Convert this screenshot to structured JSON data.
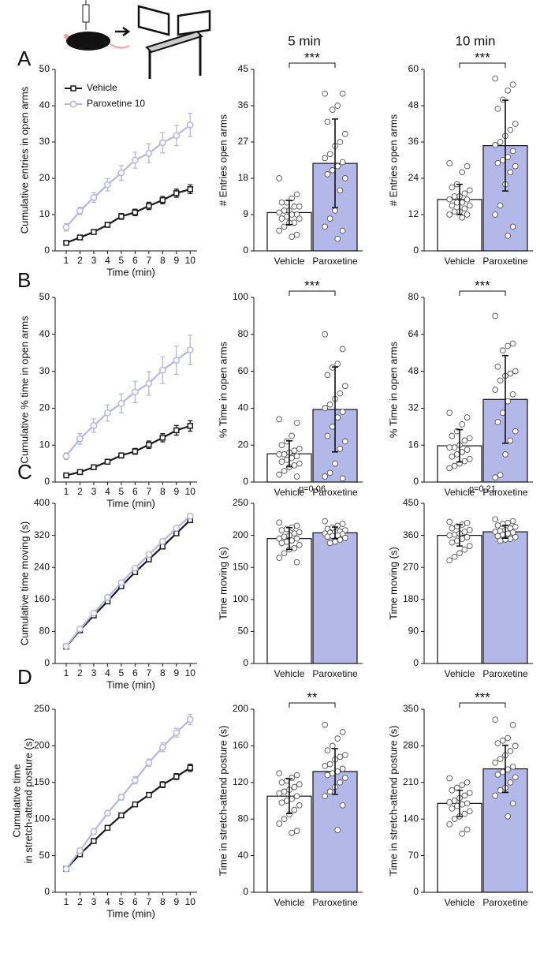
{
  "panel_labels": [
    "A",
    "B",
    "C",
    "D"
  ],
  "column_titles": [
    "5 min",
    "10 min"
  ],
  "chart_data": [
    {
      "type": "line",
      "ylabel": "Cumulative entries in open arms",
      "xlabel": "Time (min)",
      "x": [
        1,
        2,
        3,
        4,
        5,
        6,
        7,
        8,
        9,
        10
      ],
      "xlim": [
        0.2,
        10.5
      ],
      "xticks": [
        1,
        2,
        3,
        4,
        5,
        6,
        7,
        8,
        9,
        10
      ],
      "ylim": [
        0,
        50
      ],
      "yticks": [
        0,
        10,
        20,
        30,
        40,
        50
      ],
      "series": [
        {
          "name": "Vehicle",
          "color": "#1a1a1a",
          "marker": "square",
          "values": [
            2.2,
            3.7,
            5.2,
            7.2,
            9.5,
            10.6,
            12.4,
            14,
            15.9,
            17
          ],
          "errors": [
            0.4,
            0.5,
            0.6,
            0.7,
            0.8,
            0.9,
            1,
            1,
            1.1,
            1.2
          ]
        },
        {
          "name": "Paroxetine 10",
          "color": "#b3b8e3",
          "marker": "circle",
          "values": [
            6.5,
            11,
            14.7,
            18.2,
            21.5,
            25,
            26.9,
            29.8,
            31.8,
            34.7
          ],
          "errors": [
            1,
            1,
            1.3,
            1.7,
            2,
            2.2,
            2.6,
            2.8,
            2.8,
            3.2
          ]
        }
      ]
    },
    {
      "type": "bar",
      "ylabel": "# Entries open arms",
      "categories": [
        "Vehicle",
        "Paroxetine"
      ],
      "colors": [
        "#ffffff",
        "#b4b8e8"
      ],
      "values": [
        9.5,
        21.7
      ],
      "errors": [
        3,
        11
      ],
      "ylim": [
        0,
        45
      ],
      "yticks": [
        0,
        9,
        18,
        27,
        36,
        45
      ],
      "annotation": "***",
      "bracket": true,
      "points": [
        [
          18,
          14,
          13,
          12,
          12,
          11,
          11,
          10,
          10,
          9.5,
          9,
          9,
          8.5,
          8,
          8,
          7,
          7,
          6,
          5,
          4,
          3.5
        ],
        [
          39,
          39,
          36,
          35,
          32,
          29,
          27,
          26,
          24,
          23,
          22,
          21,
          20,
          19,
          18,
          15,
          10,
          8,
          6,
          5,
          3
        ]
      ]
    },
    {
      "type": "bar",
      "ylabel": "# Entries open arms",
      "categories": [
        "Vehicle",
        "Paroxetine"
      ],
      "colors": [
        "#ffffff",
        "#b4b8e8"
      ],
      "values": [
        17,
        34.8
      ],
      "errors": [
        5,
        15
      ],
      "ylim": [
        0,
        60
      ],
      "yticks": [
        0,
        12,
        24,
        36,
        48,
        60
      ],
      "annotation": "***",
      "bracket": true,
      "points": [
        [
          29,
          28,
          26,
          22,
          21,
          20,
          19,
          18,
          18,
          17,
          17,
          16,
          16,
          15,
          15,
          14,
          13,
          13,
          12,
          12,
          11
        ],
        [
          57,
          55,
          53,
          50,
          47,
          42,
          40,
          38,
          36,
          35,
          33,
          31,
          30,
          29,
          28,
          26,
          22,
          15,
          12,
          8,
          5
        ]
      ]
    },
    {
      "type": "line",
      "ylabel": "Cumulative % time in open arms",
      "xlabel": "Time (min)",
      "x": [
        1,
        2,
        3,
        4,
        5,
        6,
        7,
        8,
        9,
        10
      ],
      "xlim": [
        0.2,
        10.5
      ],
      "xticks": [
        1,
        2,
        3,
        4,
        5,
        6,
        7,
        8,
        9,
        10
      ],
      "ylim": [
        0,
        50
      ],
      "yticks": [
        0,
        10,
        20,
        30,
        40,
        50
      ],
      "series": [
        {
          "color": "#1a1a1a",
          "marker": "square",
          "values": [
            1.8,
            2.7,
            4,
            5.5,
            7.2,
            8.3,
            10.1,
            12,
            14,
            15.2
          ],
          "errors": [
            0.3,
            0.4,
            0.5,
            0.6,
            0.7,
            0.8,
            1,
            1.1,
            1.3,
            1.4
          ]
        },
        {
          "color": "#b3b8e3",
          "marker": "circle",
          "values": [
            7,
            11.7,
            15.3,
            18.7,
            21.3,
            24.4,
            26.7,
            30.3,
            33,
            35.8
          ],
          "errors": [
            0.9,
            1.4,
            1.8,
            2.2,
            2.6,
            2.9,
            3.2,
            3.6,
            3.8,
            4
          ]
        }
      ]
    },
    {
      "type": "bar",
      "ylabel": "% Time in open arms",
      "categories": [
        "Vehicle",
        "Paroxetine"
      ],
      "colors": [
        "#ffffff",
        "#b4b8e8"
      ],
      "values": [
        15.3,
        39.3
      ],
      "errors": [
        7,
        23
      ],
      "ylim": [
        0,
        100
      ],
      "yticks": [
        0,
        20,
        40,
        60,
        80,
        100
      ],
      "annotation": "***",
      "bracket": true,
      "points": [
        [
          34,
          32,
          25,
          22,
          20,
          18,
          17,
          16,
          15,
          15,
          14,
          13,
          12,
          11,
          10,
          9,
          8,
          6,
          4,
          3
        ],
        [
          80,
          72,
          64,
          62,
          58,
          52,
          48,
          45,
          42,
          40,
          38,
          35,
          30,
          25,
          22,
          18,
          10,
          5,
          3,
          2
        ]
      ]
    },
    {
      "type": "bar",
      "ylabel": "% Time in open arms",
      "categories": [
        "Vehicle",
        "Paroxetine"
      ],
      "colors": [
        "#ffffff",
        "#b4b8e8"
      ],
      "values": [
        15.7,
        35.8
      ],
      "errors": [
        7,
        19
      ],
      "ylim": [
        0,
        80
      ],
      "yticks": [
        0,
        16,
        32,
        48,
        64,
        80
      ],
      "annotation": "***",
      "bracket": true,
      "points": [
        [
          30,
          28,
          25,
          22,
          20,
          19,
          18,
          16,
          15,
          15,
          14,
          13,
          12,
          11,
          10,
          9,
          8,
          7,
          6
        ],
        [
          72,
          60,
          59,
          57,
          50,
          48,
          47,
          46,
          44,
          40,
          38,
          35,
          30,
          26,
          22,
          18,
          12,
          3,
          2
        ]
      ]
    },
    {
      "type": "line",
      "ylabel": "Cumulative time moving (s)",
      "xlabel": "Time (min)",
      "x": [
        1,
        2,
        3,
        4,
        5,
        6,
        7,
        8,
        9,
        10
      ],
      "xlim": [
        0.2,
        10.5
      ],
      "xticks": [
        1,
        2,
        3,
        4,
        5,
        6,
        7,
        8,
        9,
        10
      ],
      "ylim": [
        0,
        400
      ],
      "yticks": [
        0,
        80,
        160,
        240,
        320,
        400
      ],
      "series": [
        {
          "color": "#1a1a1a",
          "marker": "square",
          "values": [
            42,
            83,
            120,
            155,
            193,
            228,
            260,
            292,
            325,
            358
          ],
          "errors": [
            2,
            3,
            3,
            4,
            4,
            4,
            5,
            5,
            5,
            6
          ]
        },
        {
          "color": "#b3b8e3",
          "marker": "circle",
          "values": [
            43,
            86,
            126,
            165,
            202,
            238,
            272,
            305,
            338,
            368
          ],
          "errors": [
            2,
            2,
            3,
            3,
            3,
            4,
            4,
            4,
            5,
            5
          ]
        }
      ]
    },
    {
      "type": "bar",
      "ylabel": "Time moving (s)",
      "categories": [
        "Vehicle",
        "Paroxetine"
      ],
      "colors": [
        "#ffffff",
        "#b4b8e8"
      ],
      "values": [
        195,
        204
      ],
      "errors": [
        17,
        9
      ],
      "ylim": [
        0,
        250
      ],
      "yticks": [
        0,
        50,
        100,
        150,
        200,
        250
      ],
      "annotation": "p=0.06",
      "bracket": false,
      "points": [
        [
          220,
          215,
          212,
          210,
          208,
          205,
          203,
          200,
          198,
          195,
          195,
          192,
          190,
          188,
          185,
          180,
          178,
          172,
          165,
          158
        ],
        [
          222,
          218,
          215,
          212,
          210,
          208,
          206,
          205,
          204,
          203,
          202,
          200,
          199,
          198,
          196,
          193,
          190,
          188
        ]
      ]
    },
    {
      "type": "bar",
      "ylabel": "Time moving (s)",
      "categories": [
        "Vehicle",
        "Paroxetine"
      ],
      "colors": [
        "#ffffff",
        "#b4b8e8"
      ],
      "values": [
        360,
        370
      ],
      "errors": [
        30,
        18
      ],
      "ylim": [
        0,
        450
      ],
      "yticks": [
        0,
        90,
        180,
        270,
        360,
        450
      ],
      "annotation": "p=0.21",
      "bracket": false,
      "points": [
        [
          398,
          395,
          390,
          385,
          380,
          375,
          370,
          365,
          362,
          360,
          355,
          350,
          345,
          340,
          330,
          320,
          310,
          300,
          290
        ],
        [
          405,
          400,
          395,
          392,
          388,
          384,
          380,
          375,
          372,
          370,
          368,
          365,
          362,
          358,
          355,
          350,
          348,
          345
        ]
      ]
    },
    {
      "type": "line",
      "ylabel": [
        "Cumulative time",
        "in stretch-attend posture (s)"
      ],
      "xlabel": "Time (min)",
      "x": [
        1,
        2,
        3,
        4,
        5,
        6,
        7,
        8,
        9,
        10
      ],
      "xlim": [
        0.2,
        10.5
      ],
      "xticks": [
        1,
        2,
        3,
        4,
        5,
        6,
        7,
        8,
        9,
        10
      ],
      "ylim": [
        0,
        250
      ],
      "yticks": [
        0,
        50,
        100,
        150,
        200,
        250
      ],
      "series": [
        {
          "color": "#1a1a1a",
          "marker": "square",
          "values": [
            32,
            52,
            70,
            88,
            105,
            120,
            133,
            147,
            158,
            170
          ],
          "errors": [
            1,
            2,
            2,
            2,
            3,
            3,
            3,
            4,
            4,
            5
          ]
        },
        {
          "color": "#b3b8e3",
          "marker": "circle",
          "values": [
            32,
            57,
            83,
            108,
            130,
            153,
            177,
            198,
            218,
            236
          ],
          "errors": [
            1,
            2,
            3,
            3,
            4,
            5,
            5,
            6,
            6,
            7
          ]
        }
      ]
    },
    {
      "type": "bar",
      "ylabel": "Time in stretch-attend posture (s)",
      "categories": [
        "Vehicle",
        "Paroxetine"
      ],
      "colors": [
        "#ffffff",
        "#b4b8e8"
      ],
      "values": [
        105,
        132
      ],
      "errors": [
        19,
        25
      ],
      "ylim": [
        0,
        200
      ],
      "yticks": [
        0,
        40,
        80,
        120,
        160,
        200
      ],
      "annotation": "**",
      "bracket": true,
      "points": [
        [
          130,
          128,
          125,
          122,
          120,
          118,
          115,
          112,
          110,
          108,
          105,
          102,
          100,
          98,
          95,
          90,
          85,
          80,
          75,
          67,
          65
        ],
        [
          183,
          175,
          168,
          160,
          155,
          150,
          148,
          145,
          140,
          138,
          135,
          132,
          130,
          128,
          125,
          120,
          115,
          110,
          105,
          95,
          68
        ]
      ]
    },
    {
      "type": "bar",
      "ylabel": "Time in stretch-attend posture (s)",
      "categories": [
        "Vehicle",
        "Paroxetine"
      ],
      "colors": [
        "#ffffff",
        "#b4b8e8"
      ],
      "values": [
        170,
        236
      ],
      "errors": [
        25,
        45
      ],
      "ylim": [
        0,
        350
      ],
      "yticks": [
        0,
        70,
        140,
        210,
        280,
        350
      ],
      "annotation": "***",
      "bracket": true,
      "points": [
        [
          218,
          210,
          205,
          200,
          195,
          190,
          185,
          180,
          175,
          172,
          170,
          168,
          165,
          160,
          155,
          150,
          145,
          140,
          130,
          120,
          112
        ],
        [
          330,
          320,
          295,
          290,
          285,
          280,
          270,
          262,
          255,
          248,
          240,
          235,
          230,
          225,
          220,
          210,
          200,
          195,
          185,
          170,
          145
        ]
      ]
    }
  ]
}
